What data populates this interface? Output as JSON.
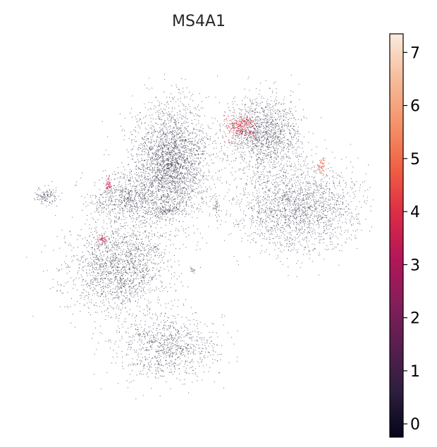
{
  "chart_data": {
    "type": "scatter",
    "title": "MS4A1",
    "xlabel": "",
    "ylabel": "",
    "axes_visible": false,
    "grid": false,
    "point_color_scale": "rocket",
    "colorbar": {
      "placement": "right",
      "min": -0.25,
      "max": 7.35,
      "ticks": [
        0,
        1,
        2,
        3,
        4,
        5,
        6,
        7
      ],
      "tick_labels": [
        "0",
        "1",
        "2",
        "3",
        "4",
        "5",
        "6",
        "7"
      ],
      "colors": [
        "#03051a",
        "#2d1e3e",
        "#571e4f",
        "#841e5a",
        "#b41658",
        "#dd2c45",
        "#f06043",
        "#f5936a",
        "#f6bc9b",
        "#faebdd"
      ]
    },
    "clusters": [
      {
        "name": "",
        "cx": 0.42,
        "cy": 0.29,
        "spread": [
          0.1,
          0.14
        ],
        "points": 2600,
        "expression": 0.1
      },
      {
        "name": "",
        "cx": 0.68,
        "cy": 0.21,
        "spread": [
          0.1,
          0.09
        ],
        "points": 1400,
        "expression": 0.2
      },
      {
        "name": "",
        "cx": 0.62,
        "cy": 0.19,
        "spread": [
          0.04,
          0.03
        ],
        "points": 260,
        "expression": 4.2
      },
      {
        "name": "",
        "cx": 0.85,
        "cy": 0.3,
        "spread": [
          0.01,
          0.02
        ],
        "points": 60,
        "expression": 5.2
      },
      {
        "name": "",
        "cx": 0.78,
        "cy": 0.41,
        "spread": [
          0.16,
          0.11
        ],
        "points": 2000,
        "expression": 0.4
      },
      {
        "name": "",
        "cx": 0.3,
        "cy": 0.39,
        "spread": [
          0.1,
          0.06
        ],
        "points": 700,
        "expression": 0.05
      },
      {
        "name": "",
        "cx": 0.24,
        "cy": 0.35,
        "spread": [
          0.01,
          0.02
        ],
        "points": 50,
        "expression": 3.5
      },
      {
        "name": "",
        "cx": 0.27,
        "cy": 0.57,
        "spread": [
          0.13,
          0.12
        ],
        "points": 1700,
        "expression": 0.1
      },
      {
        "name": "",
        "cx": 0.22,
        "cy": 0.5,
        "spread": [
          0.015,
          0.012
        ],
        "points": 45,
        "expression": 3.7
      },
      {
        "name": "",
        "cx": 0.41,
        "cy": 0.79,
        "spread": [
          0.13,
          0.08
        ],
        "points": 900,
        "expression": 0.05
      },
      {
        "name": "",
        "cx": 0.06,
        "cy": 0.38,
        "spread": [
          0.03,
          0.02
        ],
        "points": 120,
        "expression": 0.05
      },
      {
        "name": "",
        "cx": 0.55,
        "cy": 0.41,
        "spread": [
          0.01,
          0.03
        ],
        "points": 40,
        "expression": 0.05
      },
      {
        "name": "",
        "cx": 0.41,
        "cy": 0.42,
        "spread": [
          0.04,
          0.01
        ],
        "points": 80,
        "expression": 0.05
      },
      {
        "name": "",
        "cx": 0.48,
        "cy": 0.58,
        "spread": [
          0.008,
          0.008
        ],
        "points": 15,
        "expression": 0.05
      }
    ]
  }
}
